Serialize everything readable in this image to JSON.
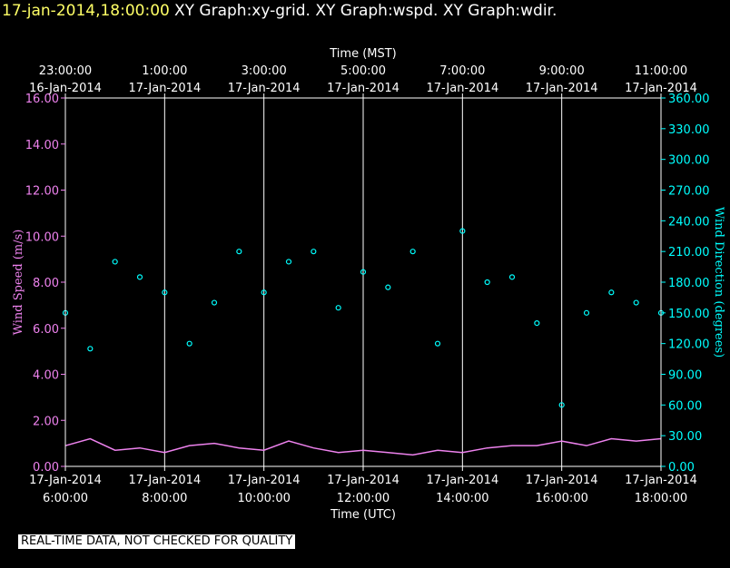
{
  "header": {
    "timestamp": "17-jan-2014,18:00:00",
    "graphs": "XY Graph:xy-grid.  XY Graph:wspd.  XY Graph:wdir."
  },
  "disclaimer": "REAL-TIME DATA, NOT CHECKED FOR QUALITY",
  "colors": {
    "speed": "#ee82ee",
    "direction": "#00ffff",
    "axis_text": "#ffffff",
    "grid": "#ffffff",
    "header_time": "#ffff66"
  },
  "chart_data": {
    "type": "scatter",
    "top_axis_title": "Time (MST)",
    "bottom_axis_title": "Time (UTC)",
    "ylabel_left": "Wind Speed (m/s)",
    "ylabel_right": "Wind Direction (degrees)",
    "x_range_utc_hours": [
      6,
      18
    ],
    "ylim_left": [
      0,
      16
    ],
    "ylim_right": [
      0,
      360
    ],
    "grid": "vertical lines at each labeled time",
    "left_ticks": [
      "0.00",
      "2.00",
      "4.00",
      "6.00",
      "8.00",
      "10.00",
      "12.00",
      "14.00",
      "16.00"
    ],
    "right_ticks": [
      "0.00",
      "30.00",
      "60.00",
      "90.00",
      "120.00",
      "150.00",
      "180.00",
      "210.00",
      "240.00",
      "270.00",
      "300.00",
      "330.00",
      "360.00"
    ],
    "top_ticks": [
      {
        "time": "23:00:00",
        "date": "16-Jan-2014"
      },
      {
        "time": "1:00:00",
        "date": "17-Jan-2014"
      },
      {
        "time": "3:00:00",
        "date": "17-Jan-2014"
      },
      {
        "time": "5:00:00",
        "date": "17-Jan-2014"
      },
      {
        "time": "7:00:00",
        "date": "17-Jan-2014"
      },
      {
        "time": "9:00:00",
        "date": "17-Jan-2014"
      },
      {
        "time": "11:00:00",
        "date": "17-Jan-2014"
      }
    ],
    "bottom_ticks": [
      {
        "date": "17-Jan-2014",
        "time": "6:00:00"
      },
      {
        "date": "17-Jan-2014",
        "time": "8:00:00"
      },
      {
        "date": "17-Jan-2014",
        "time": "10:00:00"
      },
      {
        "date": "17-Jan-2014",
        "time": "12:00:00"
      },
      {
        "date": "17-Jan-2014",
        "time": "14:00:00"
      },
      {
        "date": "17-Jan-2014",
        "time": "16:00:00"
      },
      {
        "date": "17-Jan-2014",
        "time": "18:00:00"
      }
    ],
    "series": [
      {
        "name": "Wind Speed",
        "axis": "left",
        "style": "line",
        "x": [
          6.0,
          6.5,
          7.0,
          7.5,
          8.0,
          8.5,
          9.0,
          9.5,
          10.0,
          10.5,
          11.0,
          11.5,
          12.0,
          12.5,
          13.0,
          13.5,
          14.0,
          14.5,
          15.0,
          15.5,
          16.0,
          16.5,
          17.0,
          17.5,
          18.0
        ],
        "y": [
          0.9,
          1.2,
          0.7,
          0.8,
          0.6,
          0.9,
          1.0,
          0.8,
          0.7,
          1.1,
          0.8,
          0.6,
          0.7,
          0.6,
          0.5,
          0.7,
          0.6,
          0.8,
          0.9,
          0.9,
          1.1,
          0.9,
          1.2,
          1.1,
          1.2
        ]
      },
      {
        "name": "Wind Direction",
        "axis": "right",
        "style": "points",
        "x": [
          6.0,
          6.5,
          7.0,
          7.5,
          8.0,
          8.5,
          9.0,
          9.5,
          10.0,
          10.5,
          11.0,
          11.5,
          12.0,
          12.5,
          13.0,
          13.5,
          14.0,
          14.5,
          15.0,
          15.5,
          16.0,
          16.5,
          17.0,
          17.5,
          18.0
        ],
        "y": [
          150,
          115,
          200,
          185,
          170,
          120,
          160,
          210,
          170,
          200,
          210,
          155,
          190,
          175,
          210,
          120,
          230,
          180,
          185,
          140,
          60,
          150,
          170,
          160,
          150
        ]
      }
    ]
  }
}
